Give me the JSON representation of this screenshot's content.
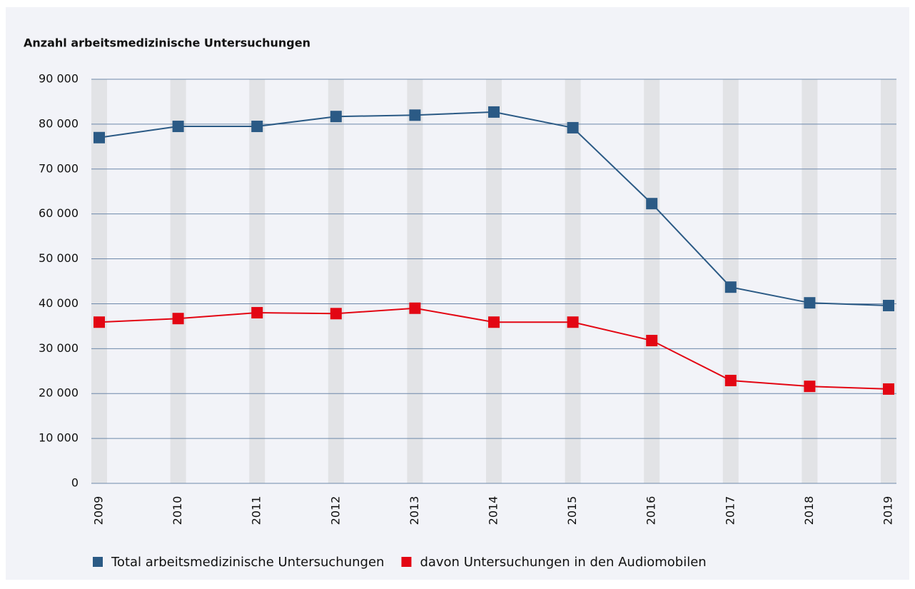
{
  "chart_data": {
    "type": "line",
    "title": "Anzahl arbeitsmedizinische Untersuchungen",
    "categories": [
      "2009",
      "2010",
      "2011",
      "2012",
      "2013",
      "2014",
      "2015",
      "2016",
      "2017",
      "2018",
      "2019"
    ],
    "series": [
      {
        "name": "Total arbeitsmedizinische Untersuchungen",
        "color": "#2b5a85",
        "values": [
          77000,
          79500,
          79500,
          81700,
          82000,
          82700,
          79200,
          62300,
          43700,
          40200,
          39600
        ]
      },
      {
        "name": "davon Untersuchungen in den Audiomobilen",
        "color": "#e30613",
        "values": [
          35900,
          36700,
          38000,
          37800,
          39000,
          35900,
          35900,
          31800,
          22900,
          21600,
          21000
        ]
      }
    ],
    "ylim": [
      0,
      90000
    ],
    "yticks": [
      0,
      {
        "value": 10000,
        "label": "10 000"
      },
      {
        "value": 20000,
        "label": "20 000"
      },
      {
        "value": 30000,
        "label": "30 000"
      },
      {
        "value": 40000,
        "label": "40 000"
      },
      {
        "value": 50000,
        "label": "50 000"
      },
      {
        "value": 60000,
        "label": "60 000"
      },
      {
        "value": 70000,
        "label": "70 000"
      },
      {
        "value": 80000,
        "label": "80 000"
      },
      {
        "value": 90000,
        "label": "90 000"
      }
    ],
    "grid": true,
    "legend": "bottom"
  }
}
